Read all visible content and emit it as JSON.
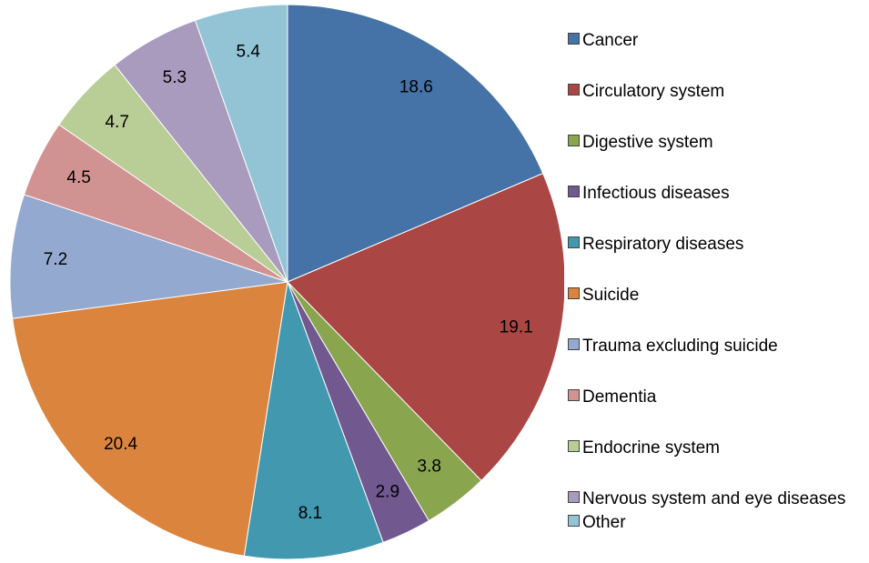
{
  "chart_data": {
    "type": "pie",
    "categories": [
      "Cancer",
      "Circulatory system",
      "Digestive system",
      "Infectious diseases",
      "Respiratory diseases",
      "Suicide",
      "Trauma excluding suicide",
      "Dementia",
      "Endocrine system",
      "Nervous system and eye diseases",
      "Other"
    ],
    "values": [
      18.6,
      19.1,
      3.8,
      2.9,
      8.1,
      20.4,
      7.2,
      4.5,
      4.7,
      5.3,
      5.4
    ],
    "colors": [
      "#4572a7",
      "#aa4643",
      "#89a54e",
      "#71588f",
      "#4198af",
      "#db843d",
      "#93a9cf",
      "#d19392",
      "#b9cd96",
      "#a99bbd",
      "#93c4d6"
    ],
    "legend": "right"
  }
}
